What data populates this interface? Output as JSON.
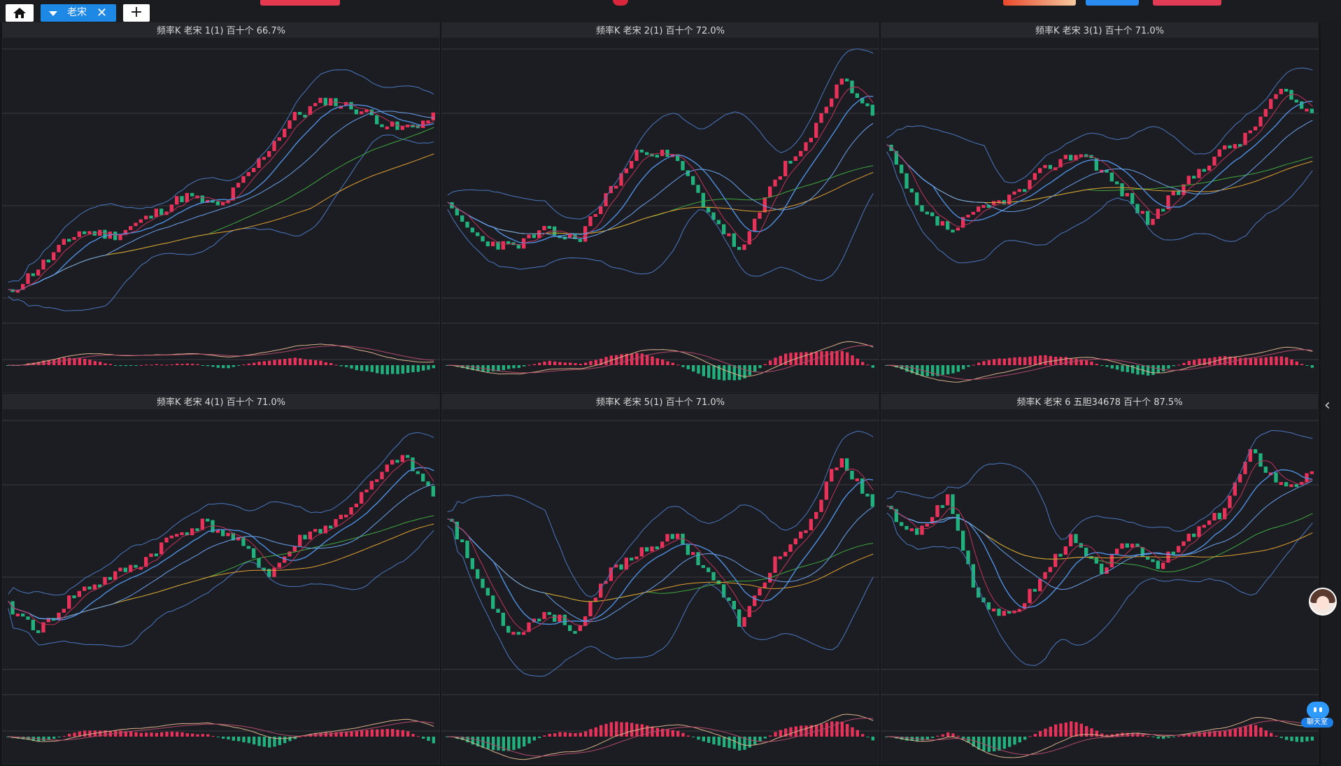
{
  "app": {
    "tab": {
      "label": "老宋",
      "close": "✕"
    },
    "add_tab": "+",
    "icons": {
      "home": "home-icon",
      "dropdown": "triangle-down-icon",
      "close": "close-icon",
      "add": "plus-icon",
      "collapse": "chevron-left-icon",
      "chat": "chat-bubble-icon"
    },
    "chat_label": "聊天室",
    "collapse_glyph": "‹"
  },
  "colors": {
    "background": "#141519",
    "panel": "#1c1d22",
    "header": "#26272c",
    "up": "#e8325a",
    "down": "#22b07d",
    "ma_pink": "#c2325a",
    "ma_blue": "#4f8fe0",
    "ma_green": "#3fa83f",
    "ma_orange": "#e0a030",
    "band": "#4a78c0",
    "macd_dif": "#d9b08a",
    "macd_dea": "#b04a6a",
    "accent_tab": "#1e88e5"
  },
  "panels": [
    {
      "title": "频率K  老宋  1(1)  百十个  66.7%",
      "seed": 11,
      "profile": [
        0.05,
        0.18,
        0.32,
        0.3,
        0.38,
        0.47,
        0.42,
        0.6,
        0.8,
        0.88,
        0.83,
        0.75,
        0.8
      ]
    },
    {
      "title": "频率K  老宋  2(1)  百十个  72.0%",
      "seed": 23,
      "profile": [
        0.42,
        0.28,
        0.25,
        0.32,
        0.28,
        0.5,
        0.68,
        0.62,
        0.4,
        0.22,
        0.55,
        0.68,
        0.98,
        0.82
      ]
    },
    {
      "title": "频率K  老宋  3(1)  百十个  71.0%",
      "seed": 37,
      "profile": [
        0.68,
        0.4,
        0.32,
        0.42,
        0.48,
        0.6,
        0.66,
        0.52,
        0.36,
        0.5,
        0.64,
        0.72,
        0.92,
        0.82
      ]
    },
    {
      "title": "频率K  老宋  4(1)  百十个  71.0%",
      "seed": 41,
      "profile": [
        0.3,
        0.2,
        0.35,
        0.42,
        0.48,
        0.6,
        0.66,
        0.58,
        0.44,
        0.6,
        0.66,
        0.8,
        0.95,
        0.78
      ]
    },
    {
      "title": "频率K  老宋  5(1)  百十个  71.0%",
      "seed": 53,
      "profile": [
        0.7,
        0.4,
        0.18,
        0.28,
        0.2,
        0.45,
        0.55,
        0.6,
        0.45,
        0.22,
        0.5,
        0.62,
        0.95,
        0.72
      ]
    },
    {
      "title": "频率K  老宋  6 五胆34678  百十个  87.5%",
      "seed": 67,
      "profile": [
        0.72,
        0.6,
        0.78,
        0.35,
        0.25,
        0.4,
        0.6,
        0.45,
        0.58,
        0.48,
        0.6,
        0.7,
        0.96,
        0.82,
        0.86
      ]
    }
  ]
}
